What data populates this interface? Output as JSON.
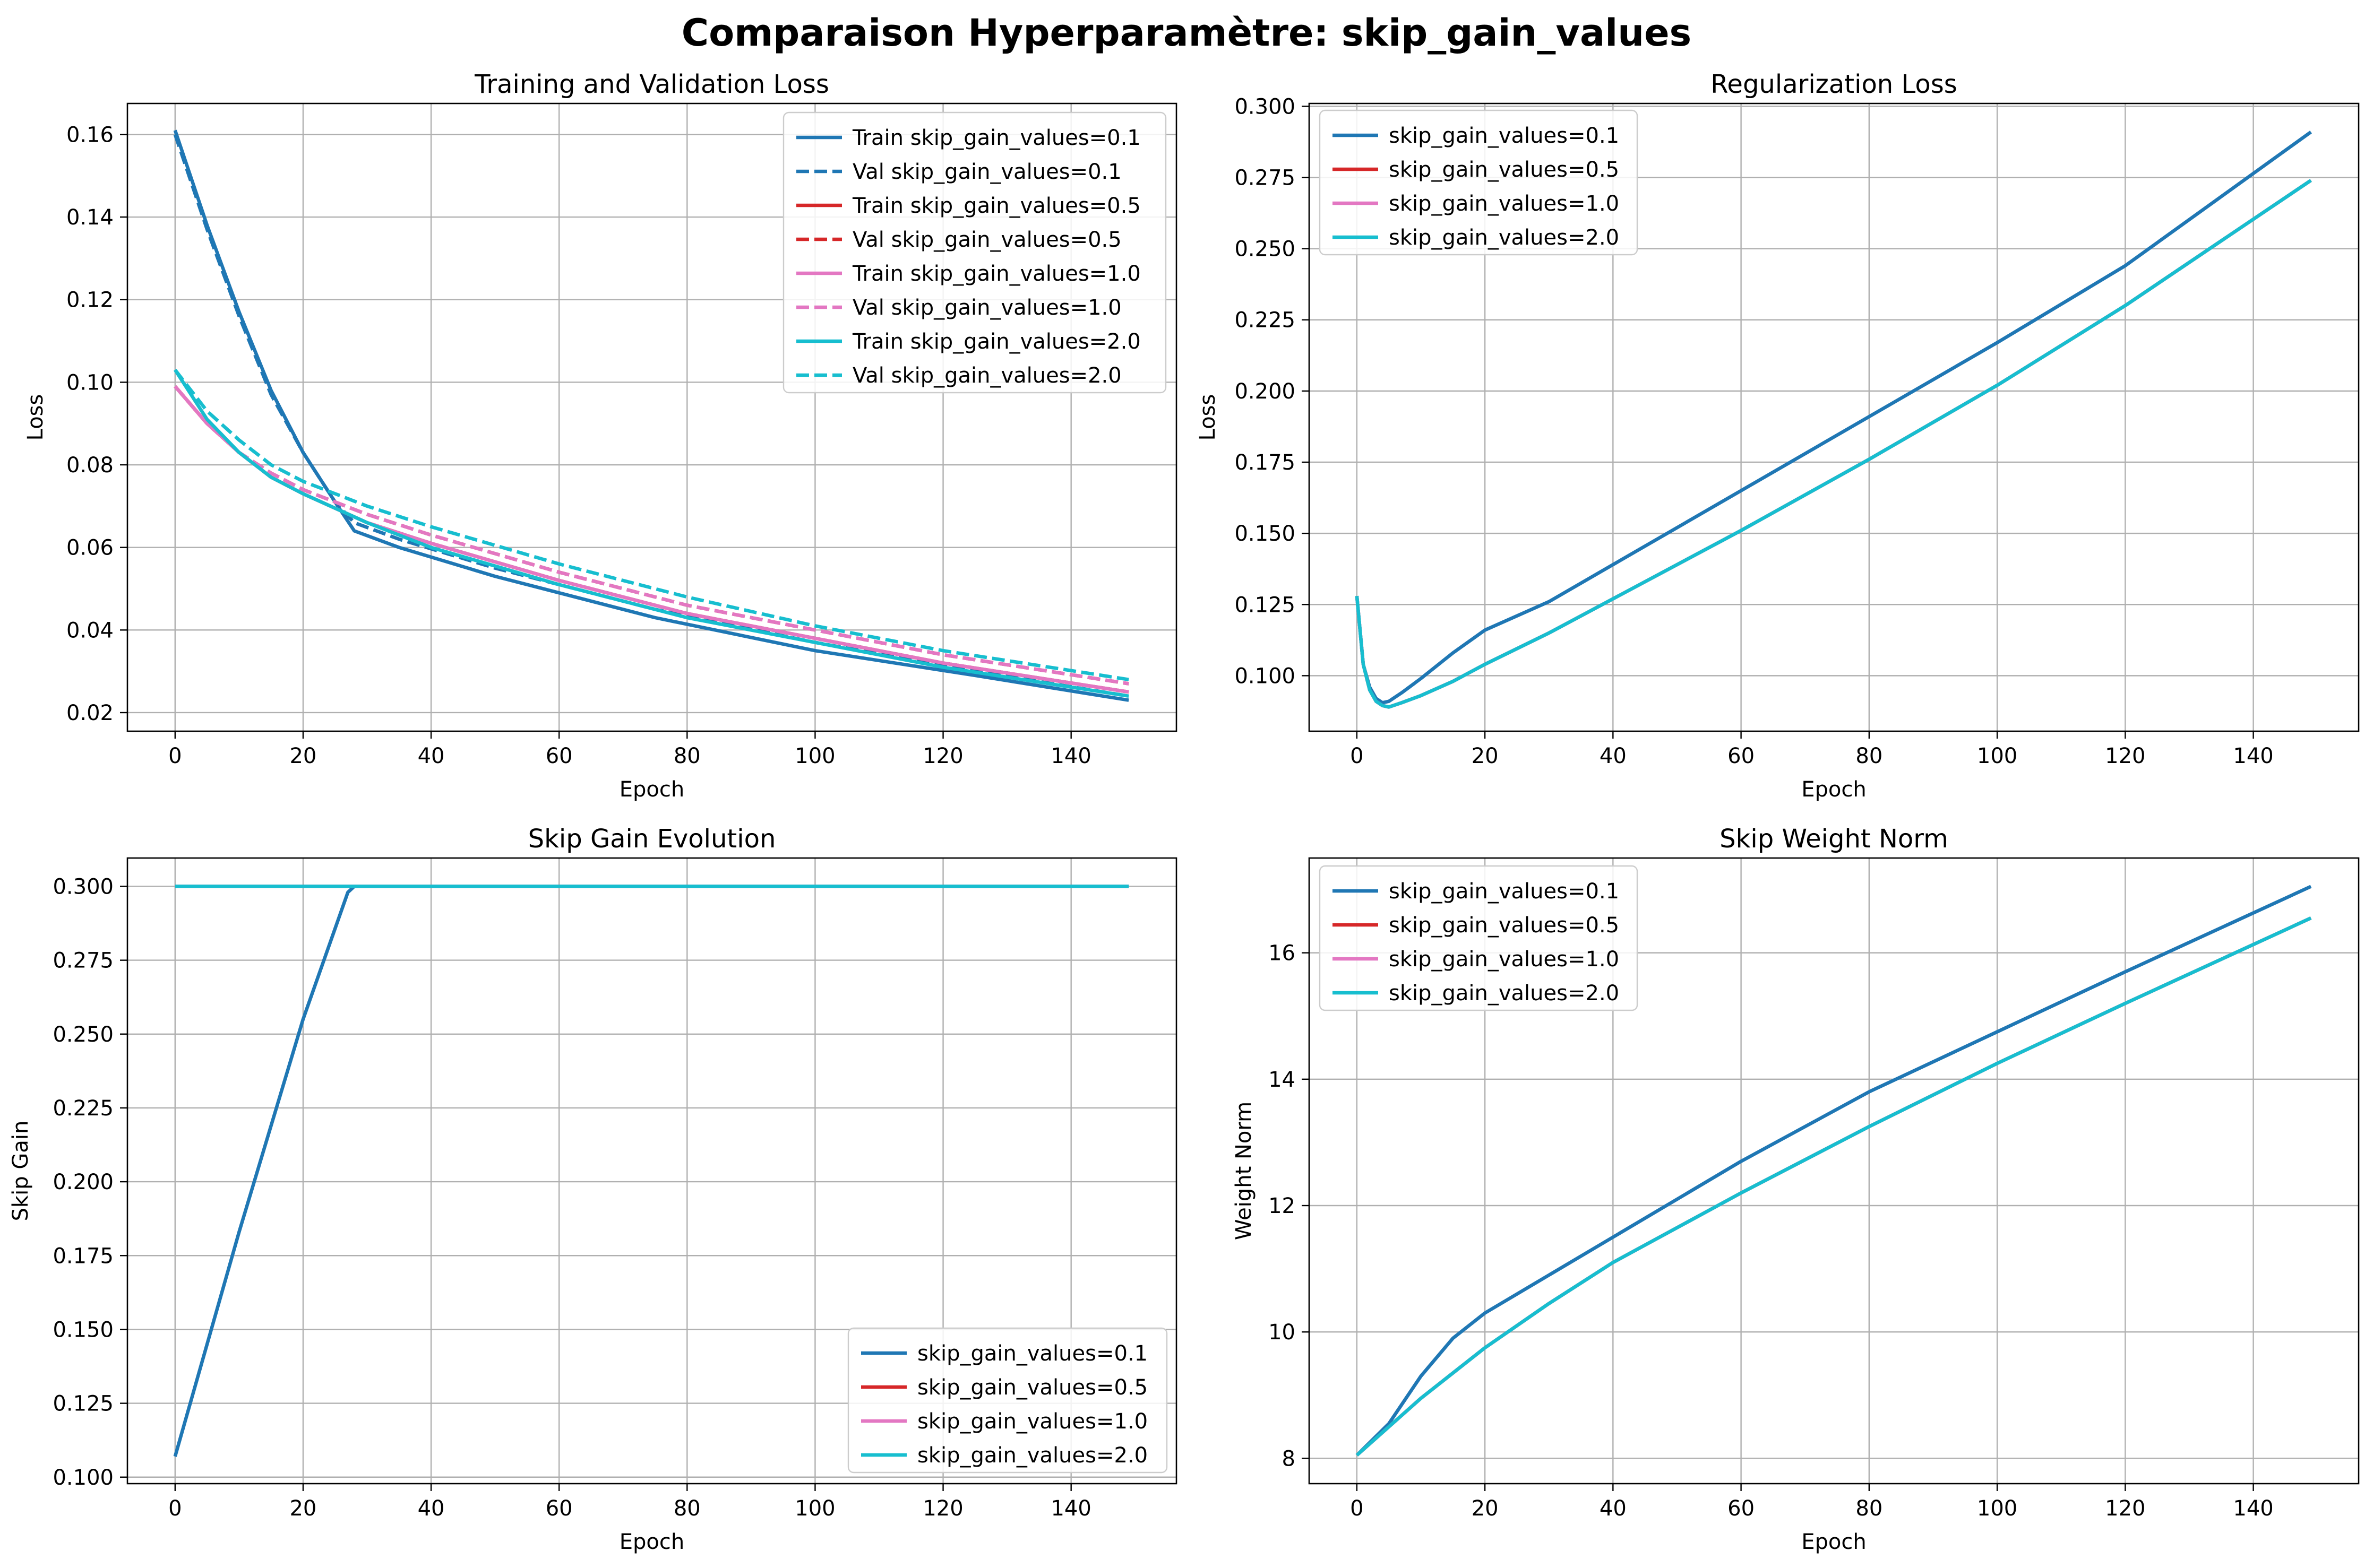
{
  "figure": {
    "title": "Comparaison Hyperparamètre: skip_gain_values"
  },
  "colors": {
    "0.1": "#1f77b4",
    "0.5": "#d62728",
    "1.0": "#e377c2",
    "2.0": "#17becf",
    "grid": "#b0b0b0"
  },
  "chart_data": [
    {
      "id": "loss",
      "type": "line",
      "title": "Training and Validation Loss",
      "xlabel": "Epoch",
      "ylabel": "Loss",
      "xlim": [
        -7.45,
        156.45
      ],
      "ylim": [
        0.0155,
        0.1675
      ],
      "xticks": [
        0,
        20,
        40,
        60,
        80,
        100,
        120,
        140
      ],
      "yticks": [
        0.02,
        0.04,
        0.06,
        0.08,
        0.1,
        0.12,
        0.14,
        0.16
      ],
      "ytick_labels": [
        "0.02",
        "0.04",
        "0.06",
        "0.08",
        "0.10",
        "0.12",
        "0.14",
        "0.16"
      ],
      "grid": true,
      "legend": "upper-right",
      "series": [
        {
          "name": "Train skip_gain_values=0.1",
          "key": "0.1",
          "dash": false,
          "x": [
            0,
            5,
            10,
            15,
            20,
            25,
            28,
            35,
            50,
            75,
            100,
            125,
            149
          ],
          "y": [
            0.161,
            0.138,
            0.117,
            0.098,
            0.083,
            0.071,
            0.064,
            0.06,
            0.053,
            0.043,
            0.035,
            0.029,
            0.023
          ]
        },
        {
          "name": "Val skip_gain_values=0.1",
          "key": "0.1",
          "dash": true,
          "x": [
            0,
            5,
            10,
            15,
            20,
            25,
            28,
            35,
            50,
            75,
            100,
            125,
            149
          ],
          "y": [
            0.16,
            0.137,
            0.116,
            0.097,
            0.083,
            0.071,
            0.066,
            0.062,
            0.055,
            0.045,
            0.037,
            0.03,
            0.024
          ]
        },
        {
          "name": "Train skip_gain_values=0.5",
          "key": "0.5",
          "dash": false,
          "x": [
            0,
            5,
            10,
            15,
            20,
            30,
            40,
            60,
            80,
            100,
            120,
            149
          ],
          "y": [
            0.099,
            0.09,
            0.083,
            0.077,
            0.073,
            0.066,
            0.061,
            0.052,
            0.044,
            0.038,
            0.032,
            0.025
          ]
        },
        {
          "name": "Val skip_gain_values=0.5",
          "key": "0.5",
          "dash": true,
          "x": [
            0,
            5,
            10,
            15,
            20,
            30,
            40,
            60,
            80,
            100,
            120,
            149
          ],
          "y": [
            0.099,
            0.09,
            0.083,
            0.078,
            0.074,
            0.068,
            0.063,
            0.054,
            0.046,
            0.04,
            0.034,
            0.027
          ]
        },
        {
          "name": "Train skip_gain_values=1.0",
          "key": "1.0",
          "dash": false,
          "x": [
            0,
            5,
            10,
            15,
            20,
            30,
            40,
            60,
            80,
            100,
            120,
            149
          ],
          "y": [
            0.099,
            0.09,
            0.083,
            0.077,
            0.073,
            0.066,
            0.061,
            0.052,
            0.044,
            0.038,
            0.032,
            0.025
          ]
        },
        {
          "name": "Val skip_gain_values=1.0",
          "key": "1.0",
          "dash": true,
          "x": [
            0,
            5,
            10,
            15,
            20,
            30,
            40,
            60,
            80,
            100,
            120,
            149
          ],
          "y": [
            0.099,
            0.09,
            0.083,
            0.078,
            0.074,
            0.068,
            0.063,
            0.054,
            0.046,
            0.04,
            0.034,
            0.027
          ]
        },
        {
          "name": "Train skip_gain_values=2.0",
          "key": "2.0",
          "dash": false,
          "x": [
            0,
            5,
            10,
            15,
            20,
            30,
            40,
            60,
            80,
            100,
            120,
            149
          ],
          "y": [
            0.103,
            0.091,
            0.083,
            0.077,
            0.073,
            0.066,
            0.06,
            0.051,
            0.043,
            0.037,
            0.031,
            0.024
          ]
        },
        {
          "name": "Val skip_gain_values=2.0",
          "key": "2.0",
          "dash": true,
          "x": [
            0,
            5,
            10,
            15,
            20,
            30,
            40,
            60,
            80,
            100,
            120,
            149
          ],
          "y": [
            0.103,
            0.093,
            0.086,
            0.08,
            0.076,
            0.07,
            0.065,
            0.056,
            0.048,
            0.041,
            0.035,
            0.028
          ]
        }
      ]
    },
    {
      "id": "reg",
      "type": "line",
      "title": "Regularization Loss",
      "xlabel": "Epoch",
      "ylabel": "Loss",
      "xlim": [
        -7.45,
        156.45
      ],
      "ylim": [
        0.0805,
        0.301
      ],
      "xticks": [
        0,
        20,
        40,
        60,
        80,
        100,
        120,
        140
      ],
      "yticks": [
        0.1,
        0.125,
        0.15,
        0.175,
        0.2,
        0.225,
        0.25,
        0.275,
        0.3
      ],
      "ytick_labels": [
        "0.100",
        "0.125",
        "0.150",
        "0.175",
        "0.200",
        "0.225",
        "0.250",
        "0.275",
        "0.300"
      ],
      "grid": true,
      "legend": "upper-left",
      "series": [
        {
          "name": "skip_gain_values=0.1",
          "key": "0.1",
          "x": [
            0,
            1,
            2,
            3,
            4,
            5,
            7,
            10,
            15,
            20,
            30,
            40,
            60,
            80,
            100,
            120,
            149
          ],
          "y": [
            0.128,
            0.104,
            0.096,
            0.092,
            0.0905,
            0.091,
            0.094,
            0.099,
            0.108,
            0.116,
            0.126,
            0.139,
            0.165,
            0.191,
            0.217,
            0.244,
            0.291
          ]
        },
        {
          "name": "skip_gain_values=0.5",
          "key": "0.5",
          "x": [
            0,
            1,
            2,
            3,
            4,
            5,
            7,
            10,
            15,
            20,
            30,
            40,
            60,
            80,
            100,
            120,
            149
          ],
          "y": [
            0.128,
            0.104,
            0.095,
            0.091,
            0.0895,
            0.089,
            0.0905,
            0.093,
            0.098,
            0.104,
            0.115,
            0.127,
            0.151,
            0.176,
            0.202,
            0.23,
            0.274
          ]
        },
        {
          "name": "skip_gain_values=1.0",
          "key": "1.0",
          "x": [
            0,
            1,
            2,
            3,
            4,
            5,
            7,
            10,
            15,
            20,
            30,
            40,
            60,
            80,
            100,
            120,
            149
          ],
          "y": [
            0.128,
            0.104,
            0.095,
            0.091,
            0.0895,
            0.089,
            0.0905,
            0.093,
            0.098,
            0.104,
            0.115,
            0.127,
            0.151,
            0.176,
            0.202,
            0.23,
            0.274
          ]
        },
        {
          "name": "skip_gain_values=2.0",
          "key": "2.0",
          "x": [
            0,
            1,
            2,
            3,
            4,
            5,
            7,
            10,
            15,
            20,
            30,
            40,
            60,
            80,
            100,
            120,
            149
          ],
          "y": [
            0.128,
            0.104,
            0.095,
            0.091,
            0.0895,
            0.089,
            0.0905,
            0.093,
            0.098,
            0.104,
            0.115,
            0.127,
            0.151,
            0.176,
            0.202,
            0.23,
            0.274
          ]
        }
      ]
    },
    {
      "id": "gain",
      "type": "line",
      "title": "Skip Gain Evolution",
      "xlabel": "Epoch",
      "ylabel": "Skip Gain",
      "xlim": [
        -7.45,
        156.45
      ],
      "ylim": [
        0.0978,
        0.3096
      ],
      "xticks": [
        0,
        20,
        40,
        60,
        80,
        100,
        120,
        140
      ],
      "yticks": [
        0.1,
        0.125,
        0.15,
        0.175,
        0.2,
        0.225,
        0.25,
        0.275,
        0.3
      ],
      "ytick_labels": [
        "0.100",
        "0.125",
        "0.150",
        "0.175",
        "0.200",
        "0.225",
        "0.250",
        "0.275",
        "0.300"
      ],
      "grid": true,
      "legend": "lower-right",
      "series": [
        {
          "name": "skip_gain_values=0.1",
          "key": "0.1",
          "x": [
            0,
            10,
            20,
            27,
            28,
            149
          ],
          "y": [
            0.107,
            0.183,
            0.255,
            0.298,
            0.3,
            0.3
          ]
        },
        {
          "name": "skip_gain_values=0.5",
          "key": "0.5",
          "x": [
            0,
            149
          ],
          "y": [
            0.3,
            0.3
          ]
        },
        {
          "name": "skip_gain_values=1.0",
          "key": "1.0",
          "x": [
            0,
            149
          ],
          "y": [
            0.3,
            0.3
          ]
        },
        {
          "name": "skip_gain_values=2.0",
          "key": "2.0",
          "x": [
            0,
            149
          ],
          "y": [
            0.3,
            0.3
          ]
        }
      ]
    },
    {
      "id": "norm",
      "type": "line",
      "title": "Skip Weight Norm",
      "xlabel": "Epoch",
      "ylabel": "Weight Norm",
      "xlim": [
        -7.45,
        156.45
      ],
      "ylim": [
        7.6,
        17.5
      ],
      "xticks": [
        0,
        20,
        40,
        60,
        80,
        100,
        120,
        140
      ],
      "yticks": [
        8,
        10,
        12,
        14,
        16
      ],
      "ytick_labels": [
        "8",
        "10",
        "12",
        "14",
        "16"
      ],
      "grid": true,
      "legend": "upper-left",
      "series": [
        {
          "name": "skip_gain_values=0.1",
          "key": "0.1",
          "x": [
            0,
            5,
            10,
            15,
            20,
            30,
            40,
            60,
            80,
            100,
            120,
            149
          ],
          "y": [
            8.05,
            8.55,
            9.3,
            9.9,
            10.3,
            10.9,
            11.5,
            12.7,
            13.8,
            14.75,
            15.7,
            17.05
          ]
        },
        {
          "name": "skip_gain_values=0.5",
          "key": "0.5",
          "x": [
            0,
            5,
            10,
            15,
            20,
            30,
            40,
            60,
            80,
            100,
            120,
            149
          ],
          "y": [
            8.05,
            8.5,
            8.95,
            9.35,
            9.75,
            10.45,
            11.1,
            12.2,
            13.25,
            14.25,
            15.2,
            16.55
          ]
        },
        {
          "name": "skip_gain_values=1.0",
          "key": "1.0",
          "x": [
            0,
            5,
            10,
            15,
            20,
            30,
            40,
            60,
            80,
            100,
            120,
            149
          ],
          "y": [
            8.05,
            8.5,
            8.95,
            9.35,
            9.75,
            10.45,
            11.1,
            12.2,
            13.25,
            14.25,
            15.2,
            16.55
          ]
        },
        {
          "name": "skip_gain_values=2.0",
          "key": "2.0",
          "x": [
            0,
            5,
            10,
            15,
            20,
            30,
            40,
            60,
            80,
            100,
            120,
            149
          ],
          "y": [
            8.05,
            8.5,
            8.95,
            9.35,
            9.75,
            10.45,
            11.1,
            12.2,
            13.25,
            14.25,
            15.2,
            16.55
          ]
        }
      ]
    }
  ]
}
